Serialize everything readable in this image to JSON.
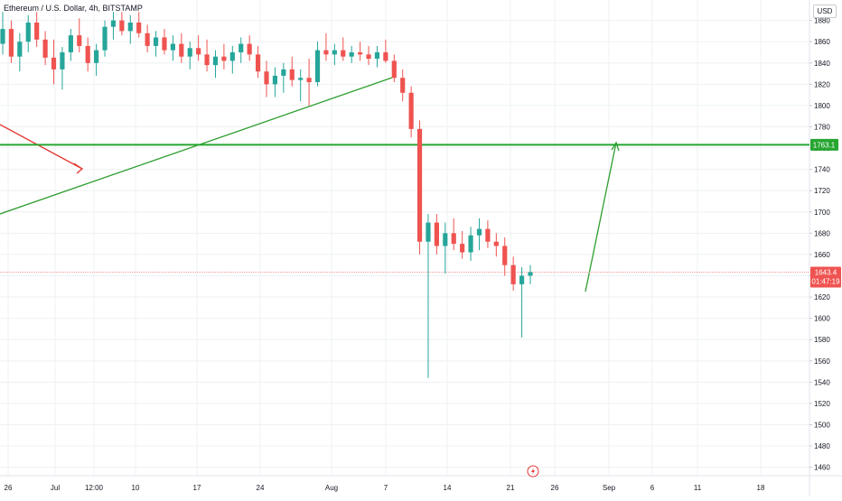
{
  "header": {
    "symbol": "Ethereum / U.S. Dollar, 4h, BITSTAMP",
    "currency": "USD"
  },
  "price_tags": {
    "level": "1763.1",
    "last": "1643.4",
    "countdown": "01:47:19"
  },
  "colors": {
    "up": "#26a69a",
    "down": "#ef5350",
    "level_line": "#26a630",
    "trend_arrow": "#2e9e2e",
    "red_arrow": "#e53935",
    "grid": "#eef0f3",
    "axis_text": "#131722"
  },
  "chart_data": {
    "type": "candlestick",
    "title": "Ethereum / U.S. Dollar, 4h, BITSTAMP",
    "xlabel": "",
    "ylabel": "",
    "ylim": [
      1446,
      1888
    ],
    "y_ticks": [
      1460,
      1480,
      1500,
      1520,
      1540,
      1560,
      1580,
      1600,
      1620,
      1640,
      1660,
      1680,
      1700,
      1720,
      1740,
      1760,
      1780,
      1800,
      1820,
      1840,
      1860,
      1880
    ],
    "x_ticks": [
      "26",
      "Jul",
      "12:00",
      "10",
      "17",
      "24",
      "Aug",
      "7",
      "14",
      "21",
      "26",
      "Sep",
      "6",
      "11",
      "18"
    ],
    "horizontal_level": 1763.1,
    "last_price": 1643.4,
    "grid": true,
    "legend": "none",
    "candles": [
      {
        "o": 1858,
        "h": 1888,
        "l": 1848,
        "c": 1872
      },
      {
        "o": 1872,
        "h": 1880,
        "l": 1840,
        "c": 1846
      },
      {
        "o": 1846,
        "h": 1868,
        "l": 1832,
        "c": 1860
      },
      {
        "o": 1860,
        "h": 1885,
        "l": 1850,
        "c": 1878
      },
      {
        "o": 1878,
        "h": 1888,
        "l": 1855,
        "c": 1862
      },
      {
        "o": 1862,
        "h": 1870,
        "l": 1838,
        "c": 1845
      },
      {
        "o": 1845,
        "h": 1862,
        "l": 1820,
        "c": 1834
      },
      {
        "o": 1834,
        "h": 1855,
        "l": 1815,
        "c": 1850
      },
      {
        "o": 1850,
        "h": 1872,
        "l": 1842,
        "c": 1866
      },
      {
        "o": 1866,
        "h": 1882,
        "l": 1850,
        "c": 1856
      },
      {
        "o": 1856,
        "h": 1864,
        "l": 1832,
        "c": 1840
      },
      {
        "o": 1840,
        "h": 1858,
        "l": 1828,
        "c": 1852
      },
      {
        "o": 1852,
        "h": 1880,
        "l": 1846,
        "c": 1874
      },
      {
        "o": 1874,
        "h": 1888,
        "l": 1862,
        "c": 1880
      },
      {
        "o": 1880,
        "h": 1888,
        "l": 1866,
        "c": 1870
      },
      {
        "o": 1870,
        "h": 1885,
        "l": 1858,
        "c": 1878
      },
      {
        "o": 1878,
        "h": 1888,
        "l": 1864,
        "c": 1868
      },
      {
        "o": 1868,
        "h": 1876,
        "l": 1850,
        "c": 1856
      },
      {
        "o": 1856,
        "h": 1870,
        "l": 1846,
        "c": 1864
      },
      {
        "o": 1864,
        "h": 1872,
        "l": 1848,
        "c": 1852
      },
      {
        "o": 1852,
        "h": 1866,
        "l": 1842,
        "c": 1858
      },
      {
        "o": 1858,
        "h": 1868,
        "l": 1840,
        "c": 1846
      },
      {
        "o": 1846,
        "h": 1860,
        "l": 1834,
        "c": 1854
      },
      {
        "o": 1854,
        "h": 1866,
        "l": 1842,
        "c": 1848
      },
      {
        "o": 1848,
        "h": 1862,
        "l": 1832,
        "c": 1838
      },
      {
        "o": 1838,
        "h": 1852,
        "l": 1826,
        "c": 1846
      },
      {
        "o": 1846,
        "h": 1858,
        "l": 1834,
        "c": 1842
      },
      {
        "o": 1842,
        "h": 1856,
        "l": 1830,
        "c": 1850
      },
      {
        "o": 1850,
        "h": 1864,
        "l": 1840,
        "c": 1858
      },
      {
        "o": 1858,
        "h": 1866,
        "l": 1842,
        "c": 1848
      },
      {
        "o": 1848,
        "h": 1856,
        "l": 1826,
        "c": 1832
      },
      {
        "o": 1832,
        "h": 1842,
        "l": 1808,
        "c": 1820
      },
      {
        "o": 1820,
        "h": 1836,
        "l": 1808,
        "c": 1828
      },
      {
        "o": 1828,
        "h": 1840,
        "l": 1812,
        "c": 1834
      },
      {
        "o": 1834,
        "h": 1846,
        "l": 1818,
        "c": 1824
      },
      {
        "o": 1824,
        "h": 1834,
        "l": 1804,
        "c": 1826
      },
      {
        "o": 1826,
        "h": 1844,
        "l": 1800,
        "c": 1822
      },
      {
        "o": 1822,
        "h": 1860,
        "l": 1818,
        "c": 1852
      },
      {
        "o": 1852,
        "h": 1868,
        "l": 1842,
        "c": 1848
      },
      {
        "o": 1848,
        "h": 1858,
        "l": 1838,
        "c": 1852
      },
      {
        "o": 1852,
        "h": 1864,
        "l": 1842,
        "c": 1846
      },
      {
        "o": 1846,
        "h": 1856,
        "l": 1840,
        "c": 1850
      },
      {
        "o": 1850,
        "h": 1860,
        "l": 1842,
        "c": 1848
      },
      {
        "o": 1848,
        "h": 1856,
        "l": 1838,
        "c": 1844
      },
      {
        "o": 1844,
        "h": 1856,
        "l": 1836,
        "c": 1850
      },
      {
        "o": 1850,
        "h": 1862,
        "l": 1840,
        "c": 1842
      },
      {
        "o": 1842,
        "h": 1848,
        "l": 1822,
        "c": 1826
      },
      {
        "o": 1826,
        "h": 1834,
        "l": 1804,
        "c": 1812
      },
      {
        "o": 1812,
        "h": 1818,
        "l": 1770,
        "c": 1778
      },
      {
        "o": 1778,
        "h": 1786,
        "l": 1660,
        "c": 1672
      },
      {
        "o": 1672,
        "h": 1698,
        "l": 1544,
        "c": 1690
      },
      {
        "o": 1690,
        "h": 1698,
        "l": 1660,
        "c": 1668
      },
      {
        "o": 1668,
        "h": 1690,
        "l": 1642,
        "c": 1680
      },
      {
        "o": 1680,
        "h": 1694,
        "l": 1664,
        "c": 1670
      },
      {
        "o": 1670,
        "h": 1682,
        "l": 1656,
        "c": 1662
      },
      {
        "o": 1662,
        "h": 1686,
        "l": 1654,
        "c": 1678
      },
      {
        "o": 1678,
        "h": 1694,
        "l": 1664,
        "c": 1684
      },
      {
        "o": 1684,
        "h": 1692,
        "l": 1666,
        "c": 1672
      },
      {
        "o": 1672,
        "h": 1680,
        "l": 1658,
        "c": 1668
      },
      {
        "o": 1668,
        "h": 1676,
        "l": 1640,
        "c": 1650
      },
      {
        "o": 1650,
        "h": 1658,
        "l": 1626,
        "c": 1632
      },
      {
        "o": 1632,
        "h": 1648,
        "l": 1582,
        "c": 1640
      },
      {
        "o": 1640,
        "h": 1650,
        "l": 1632,
        "c": 1643.4
      }
    ]
  }
}
